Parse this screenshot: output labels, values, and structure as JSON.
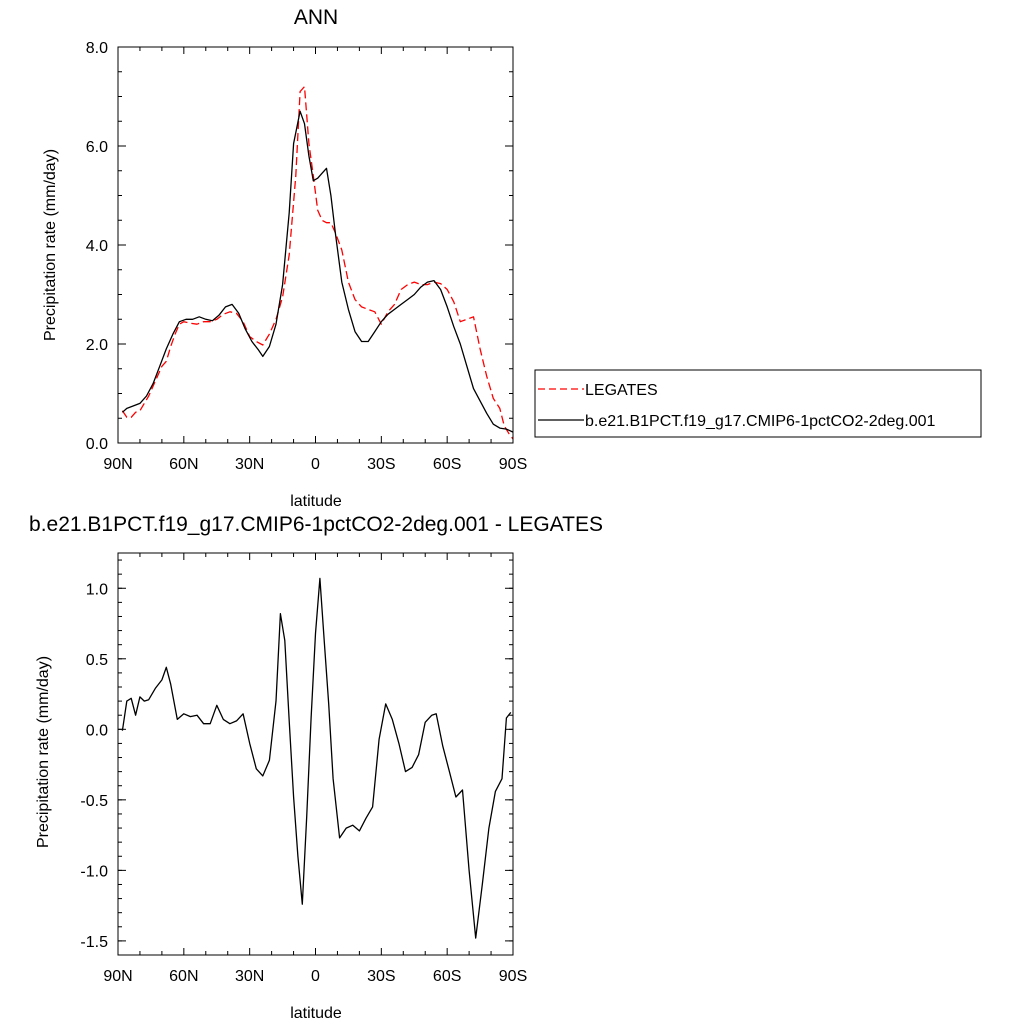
{
  "chart_data": [
    {
      "type": "line",
      "title": "ANN",
      "xlabel": "latitude",
      "ylabel": "Precipitation rate (mm/day)",
      "xlim": [
        90,
        -90
      ],
      "ylim": [
        0,
        8
      ],
      "x_ticks": [
        {
          "value": 90,
          "label": "90N"
        },
        {
          "value": 60,
          "label": "60N"
        },
        {
          "value": 30,
          "label": "30N"
        },
        {
          "value": 0,
          "label": "0"
        },
        {
          "value": -30,
          "label": "30S"
        },
        {
          "value": -60,
          "label": "60S"
        },
        {
          "value": -90,
          "label": "90S"
        }
      ],
      "y_ticks": [
        {
          "value": 0,
          "label": "0.0"
        },
        {
          "value": 2,
          "label": "2.0"
        },
        {
          "value": 4,
          "label": "4.0"
        },
        {
          "value": 6,
          "label": "6.0"
        },
        {
          "value": 8,
          "label": "8.0"
        }
      ],
      "legend": {
        "placement": "right"
      },
      "grid": false,
      "series": [
        {
          "name": "LEGATES",
          "color": "#ff0000",
          "dash": "dashed",
          "points": [
            [
              88,
              0.65
            ],
            [
              86,
              0.52
            ],
            [
              84,
              0.52
            ],
            [
              82,
              0.62
            ],
            [
              80,
              0.65
            ],
            [
              78,
              0.8
            ],
            [
              76,
              0.95
            ],
            [
              74,
              1.15
            ],
            [
              72,
              1.35
            ],
            [
              70,
              1.55
            ],
            [
              68,
              1.65
            ],
            [
              66,
              1.95
            ],
            [
              64,
              2.2
            ],
            [
              62,
              2.4
            ],
            [
              60,
              2.45
            ],
            [
              57,
              2.42
            ],
            [
              54,
              2.4
            ],
            [
              51,
              2.45
            ],
            [
              48,
              2.45
            ],
            [
              45,
              2.5
            ],
            [
              42,
              2.6
            ],
            [
              39,
              2.65
            ],
            [
              36,
              2.62
            ],
            [
              33,
              2.45
            ],
            [
              30,
              2.15
            ],
            [
              27,
              2.05
            ],
            [
              24,
              1.98
            ],
            [
              21,
              2.2
            ],
            [
              18,
              2.5
            ],
            [
              15,
              2.95
            ],
            [
              12,
              3.8
            ],
            [
              9,
              5.4
            ],
            [
              7,
              7.1
            ],
            [
              5,
              7.2
            ],
            [
              3,
              6.05
            ],
            [
              1,
              5.4
            ],
            [
              -1,
              4.7
            ],
            [
              -3,
              4.5
            ],
            [
              -5,
              4.45
            ],
            [
              -7,
              4.45
            ],
            [
              -9,
              4.25
            ],
            [
              -12,
              3.9
            ],
            [
              -15,
              3.25
            ],
            [
              -18,
              2.9
            ],
            [
              -21,
              2.75
            ],
            [
              -24,
              2.7
            ],
            [
              -27,
              2.65
            ],
            [
              -30,
              2.4
            ],
            [
              -33,
              2.65
            ],
            [
              -36,
              2.8
            ],
            [
              -39,
              3.1
            ],
            [
              -42,
              3.2
            ],
            [
              -45,
              3.25
            ],
            [
              -48,
              3.2
            ],
            [
              -51,
              3.2
            ],
            [
              -54,
              3.25
            ],
            [
              -57,
              3.22
            ],
            [
              -60,
              3.1
            ],
            [
              -63,
              2.85
            ],
            [
              -66,
              2.45
            ],
            [
              -69,
              2.5
            ],
            [
              -72,
              2.55
            ],
            [
              -75,
              1.9
            ],
            [
              -78,
              1.35
            ],
            [
              -81,
              0.9
            ],
            [
              -84,
              0.7
            ],
            [
              -86,
              0.35
            ],
            [
              -88,
              0.2
            ],
            [
              -90,
              0.08
            ]
          ]
        },
        {
          "name": "b.e21.B1PCT.f19_g17.CMIP6-1pctCO2-2deg.001",
          "color": "#000000",
          "dash": "solid",
          "points": [
            [
              88,
              0.62
            ],
            [
              86,
              0.7
            ],
            [
              83,
              0.75
            ],
            [
              80,
              0.8
            ],
            [
              77,
              0.95
            ],
            [
              74,
              1.2
            ],
            [
              71,
              1.55
            ],
            [
              68,
              1.9
            ],
            [
              65,
              2.2
            ],
            [
              62,
              2.45
            ],
            [
              59,
              2.5
            ],
            [
              56,
              2.5
            ],
            [
              53,
              2.55
            ],
            [
              50,
              2.5
            ],
            [
              47,
              2.47
            ],
            [
              44,
              2.58
            ],
            [
              41,
              2.75
            ],
            [
              38,
              2.8
            ],
            [
              35,
              2.62
            ],
            [
              32,
              2.3
            ],
            [
              29,
              2.05
            ],
            [
              26,
              1.88
            ],
            [
              24,
              1.75
            ],
            [
              21,
              1.95
            ],
            [
              18,
              2.4
            ],
            [
              15,
              3.2
            ],
            [
              12,
              4.65
            ],
            [
              10,
              6.05
            ],
            [
              7,
              6.7
            ],
            [
              5,
              6.45
            ],
            [
              3,
              5.8
            ],
            [
              1,
              5.3
            ],
            [
              -1,
              5.35
            ],
            [
              -3,
              5.45
            ],
            [
              -5,
              5.55
            ],
            [
              -7,
              5.0
            ],
            [
              -9,
              4.25
            ],
            [
              -12,
              3.25
            ],
            [
              -15,
              2.7
            ],
            [
              -18,
              2.25
            ],
            [
              -21,
              2.05
            ],
            [
              -24,
              2.05
            ],
            [
              -27,
              2.25
            ],
            [
              -30,
              2.45
            ],
            [
              -33,
              2.6
            ],
            [
              -36,
              2.7
            ],
            [
              -39,
              2.8
            ],
            [
              -42,
              2.9
            ],
            [
              -45,
              3.0
            ],
            [
              -48,
              3.15
            ],
            [
              -51,
              3.25
            ],
            [
              -54,
              3.28
            ],
            [
              -57,
              3.1
            ],
            [
              -60,
              2.75
            ],
            [
              -63,
              2.35
            ],
            [
              -66,
              2.0
            ],
            [
              -69,
              1.55
            ],
            [
              -72,
              1.1
            ],
            [
              -75,
              0.85
            ],
            [
              -78,
              0.6
            ],
            [
              -81,
              0.38
            ],
            [
              -84,
              0.3
            ],
            [
              -87,
              0.28
            ],
            [
              -90,
              0.22
            ]
          ]
        }
      ]
    },
    {
      "type": "line",
      "title": "b.e21.B1PCT.f19_g17.CMIP6-1pctCO2-2deg.001 - LEGATES",
      "xlabel": "latitude",
      "ylabel": "Precipitation rate (mm/day)",
      "xlim": [
        90,
        -90
      ],
      "ylim": [
        -1.6,
        1.25
      ],
      "x_ticks": [
        {
          "value": 90,
          "label": "90N"
        },
        {
          "value": 60,
          "label": "60N"
        },
        {
          "value": 30,
          "label": "30N"
        },
        {
          "value": 0,
          "label": "0"
        },
        {
          "value": -30,
          "label": "30S"
        },
        {
          "value": -60,
          "label": "60S"
        },
        {
          "value": -90,
          "label": "90S"
        }
      ],
      "y_ticks": [
        {
          "value": 1.0,
          "label": "1.0"
        },
        {
          "value": 0.5,
          "label": "0.5"
        },
        {
          "value": 0.0,
          "label": "0.0"
        },
        {
          "value": -0.5,
          "label": "-0.5"
        },
        {
          "value": -1.0,
          "label": "-1.0"
        },
        {
          "value": -1.5,
          "label": "-1.5"
        }
      ],
      "grid": false,
      "series": [
        {
          "color": "#000000",
          "dash": "solid",
          "points": [
            [
              88,
              -0.01
            ],
            [
              86,
              0.2
            ],
            [
              84,
              0.22
            ],
            [
              82,
              0.1
            ],
            [
              80,
              0.23
            ],
            [
              78,
              0.2
            ],
            [
              76,
              0.21
            ],
            [
              73,
              0.29
            ],
            [
              70,
              0.35
            ],
            [
              68,
              0.44
            ],
            [
              66,
              0.32
            ],
            [
              63,
              0.07
            ],
            [
              60,
              0.11
            ],
            [
              57,
              0.09
            ],
            [
              54,
              0.1
            ],
            [
              51,
              0.04
            ],
            [
              48,
              0.04
            ],
            [
              45,
              0.17
            ],
            [
              42,
              0.07
            ],
            [
              39,
              0.04
            ],
            [
              36,
              0.06
            ],
            [
              33,
              0.11
            ],
            [
              30,
              -0.1
            ],
            [
              27,
              -0.28
            ],
            [
              24,
              -0.33
            ],
            [
              21,
              -0.22
            ],
            [
              18,
              0.2
            ],
            [
              16,
              0.82
            ],
            [
              14,
              0.63
            ],
            [
              12,
              0.06
            ],
            [
              10,
              -0.48
            ],
            [
              8,
              -0.9
            ],
            [
              6,
              -1.24
            ],
            [
              4,
              -0.62
            ],
            [
              2,
              0.08
            ],
            [
              0,
              0.68
            ],
            [
              -2,
              1.07
            ],
            [
              -4,
              0.62
            ],
            [
              -6,
              0.18
            ],
            [
              -8,
              -0.35
            ],
            [
              -11,
              -0.77
            ],
            [
              -14,
              -0.7
            ],
            [
              -17,
              -0.68
            ],
            [
              -20,
              -0.72
            ],
            [
              -23,
              -0.63
            ],
            [
              -26,
              -0.55
            ],
            [
              -29,
              -0.07
            ],
            [
              -32,
              0.18
            ],
            [
              -35,
              0.07
            ],
            [
              -38,
              -0.1
            ],
            [
              -41,
              -0.3
            ],
            [
              -44,
              -0.27
            ],
            [
              -47,
              -0.18
            ],
            [
              -50,
              0.05
            ],
            [
              -53,
              0.1
            ],
            [
              -55,
              0.11
            ],
            [
              -58,
              -0.12
            ],
            [
              -61,
              -0.3
            ],
            [
              -64,
              -0.48
            ],
            [
              -67,
              -0.43
            ],
            [
              -70,
              -1.0
            ],
            [
              -73,
              -1.48
            ],
            [
              -76,
              -1.1
            ],
            [
              -79,
              -0.7
            ],
            [
              -82,
              -0.44
            ],
            [
              -85,
              -0.35
            ],
            [
              -87,
              0.08
            ],
            [
              -89,
              0.12
            ]
          ]
        }
      ]
    }
  ]
}
